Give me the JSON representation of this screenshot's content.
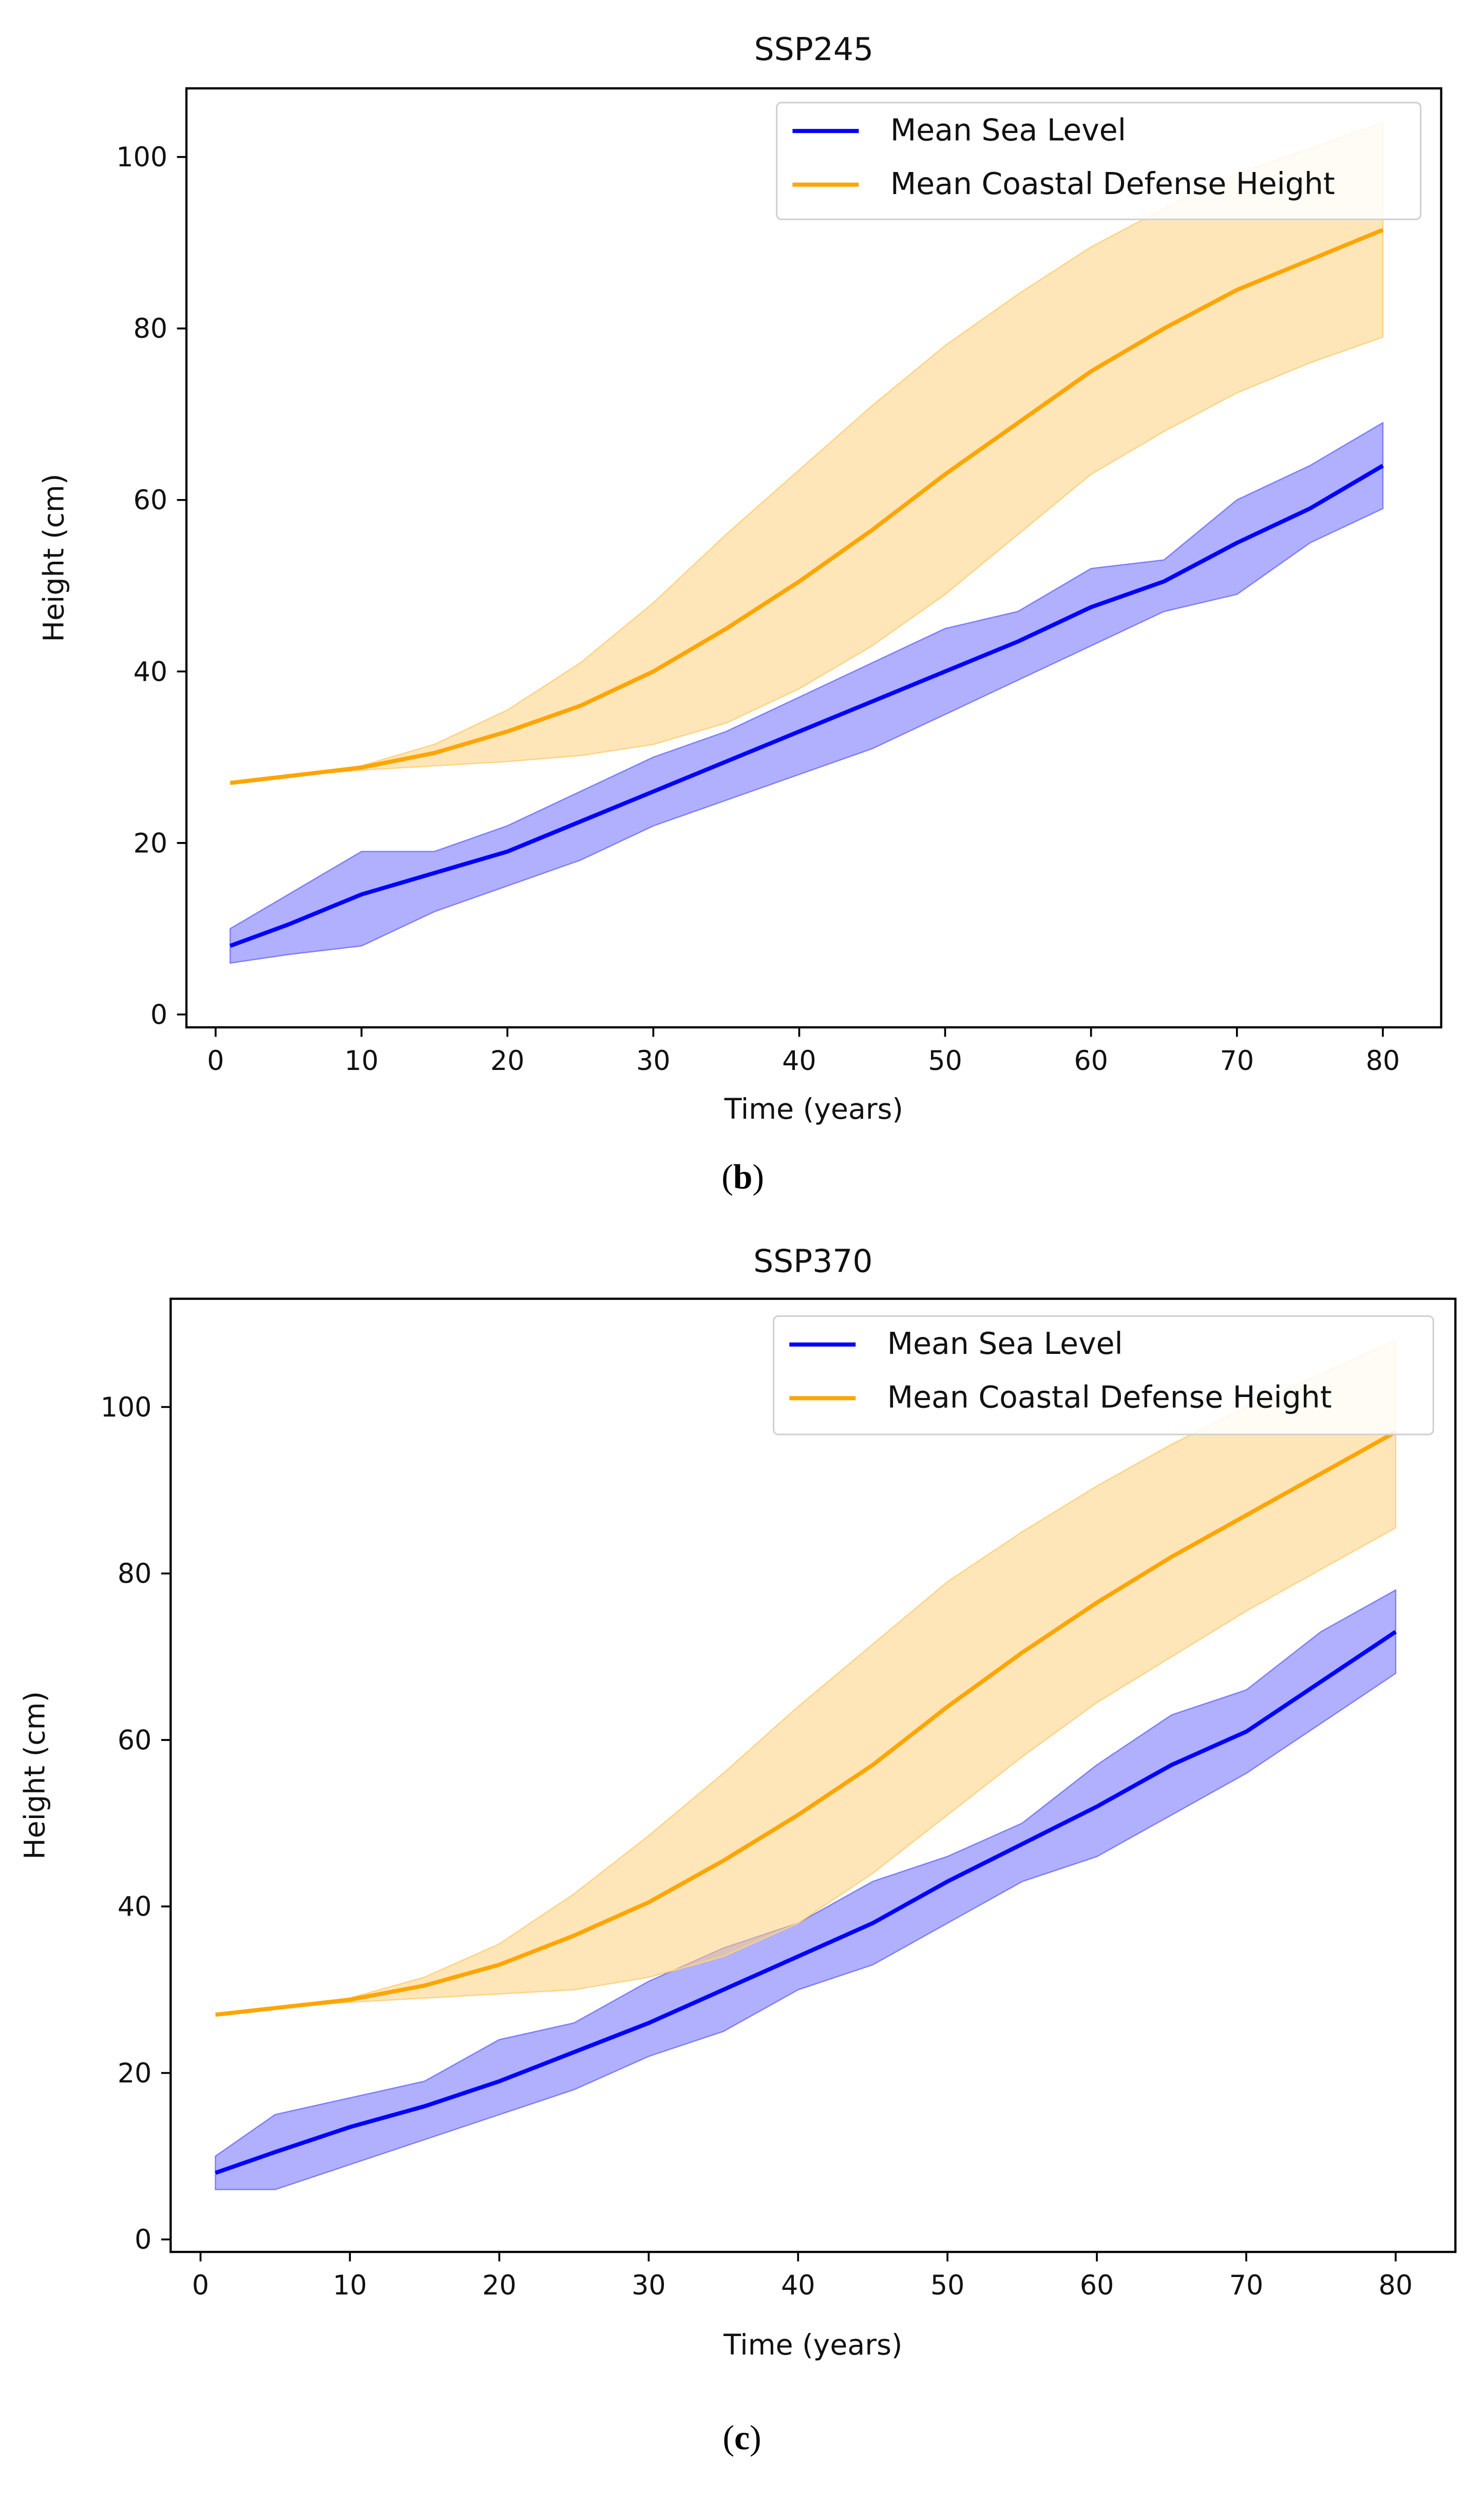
{
  "chart_data": [
    {
      "type": "line",
      "title": "SSP245",
      "caption_letter": "b",
      "xlabel": "Time (years)",
      "ylabel": "Height (cm)",
      "xlim": [
        -2,
        84
      ],
      "ylim": [
        -1.5,
        108
      ],
      "xticks": [
        0,
        10,
        20,
        30,
        40,
        50,
        60,
        70,
        80
      ],
      "yticks": [
        0,
        20,
        40,
        60,
        80,
        100
      ],
      "legend_position": "top-right",
      "x": [
        1,
        5,
        10,
        15,
        20,
        25,
        30,
        35,
        40,
        45,
        50,
        55,
        60,
        65,
        70,
        75,
        80
      ],
      "series": [
        {
          "name": "Mean Sea Level",
          "color": "#0000ff",
          "band_color": "#7b7bff",
          "values": [
            8,
            10.5,
            14,
            16.5,
            19,
            22.5,
            26,
            29.5,
            33,
            36.5,
            40,
            43.5,
            47.5,
            50.5,
            55,
            59,
            64
          ],
          "lower": [
            6,
            7,
            8,
            12,
            15,
            18,
            22,
            25,
            28,
            31,
            35,
            39,
            43,
            47,
            49,
            55,
            59
          ],
          "upper": [
            10,
            14,
            19,
            19,
            22,
            26,
            30,
            33,
            37,
            41,
            45,
            47,
            52,
            53,
            60,
            64,
            69
          ]
        },
        {
          "name": "Mean Coastal Defense Height",
          "color": "#ffa500",
          "band_color": "#ffd27f",
          "values": [
            27,
            27.8,
            28.8,
            30.5,
            33,
            36,
            40,
            45,
            50.5,
            56.5,
            63,
            69,
            75,
            80,
            84.5,
            88,
            91.5
          ],
          "lower": [
            27,
            27.8,
            28.5,
            29,
            29.5,
            30.2,
            31.5,
            34,
            38,
            43,
            49,
            56,
            63,
            68,
            72.5,
            76,
            79
          ],
          "upper": [
            27,
            27.8,
            29,
            31.5,
            35.5,
            41,
            48,
            56,
            63.5,
            71,
            78,
            84,
            89.5,
            94,
            98,
            101,
            104
          ]
        }
      ]
    },
    {
      "type": "line",
      "title": "SSP370",
      "caption_letter": "c",
      "xlabel": "Time (years)",
      "ylabel": "Height (cm)",
      "xlim": [
        -2,
        84
      ],
      "ylim": [
        -1.5,
        113
      ],
      "xticks": [
        0,
        10,
        20,
        30,
        40,
        50,
        60,
        70,
        80
      ],
      "yticks": [
        0,
        20,
        40,
        60,
        80,
        100
      ],
      "legend_position": "top-right",
      "x": [
        1,
        5,
        10,
        15,
        20,
        25,
        30,
        35,
        40,
        45,
        50,
        55,
        60,
        65,
        70,
        75,
        80
      ],
      "series": [
        {
          "name": "Mean Sea Level",
          "color": "#0000ff",
          "band_color": "#7b7bff",
          "values": [
            8,
            10.5,
            13.5,
            16,
            19,
            22.5,
            26,
            30,
            34,
            38,
            43,
            47.5,
            52,
            57,
            61,
            67,
            73
          ],
          "lower": [
            6,
            6,
            9,
            12,
            15,
            18,
            22,
            25,
            30,
            33,
            38,
            43,
            46,
            51,
            56,
            62,
            68
          ],
          "upper": [
            10,
            15,
            17,
            19,
            24,
            26,
            31,
            35,
            38,
            43,
            46,
            50,
            57,
            63,
            66,
            73,
            78
          ]
        },
        {
          "name": "Mean Coastal Defense Height",
          "color": "#ffa500",
          "band_color": "#ffd27f",
          "values": [
            27,
            27.8,
            28.8,
            30.5,
            33,
            36.5,
            40.5,
            45.5,
            51,
            57,
            64,
            70.5,
            76.5,
            82,
            87,
            92,
            97
          ],
          "lower": [
            27,
            27.8,
            28.5,
            29,
            29.5,
            30,
            31.5,
            34,
            38,
            44,
            51,
            58,
            64.5,
            70,
            75.5,
            80.5,
            85.5
          ],
          "upper": [
            27,
            27.8,
            29,
            31.5,
            35.5,
            41.5,
            48.5,
            56,
            64,
            71.5,
            79,
            85,
            90.5,
            95.5,
            100,
            104,
            108
          ]
        }
      ]
    }
  ]
}
